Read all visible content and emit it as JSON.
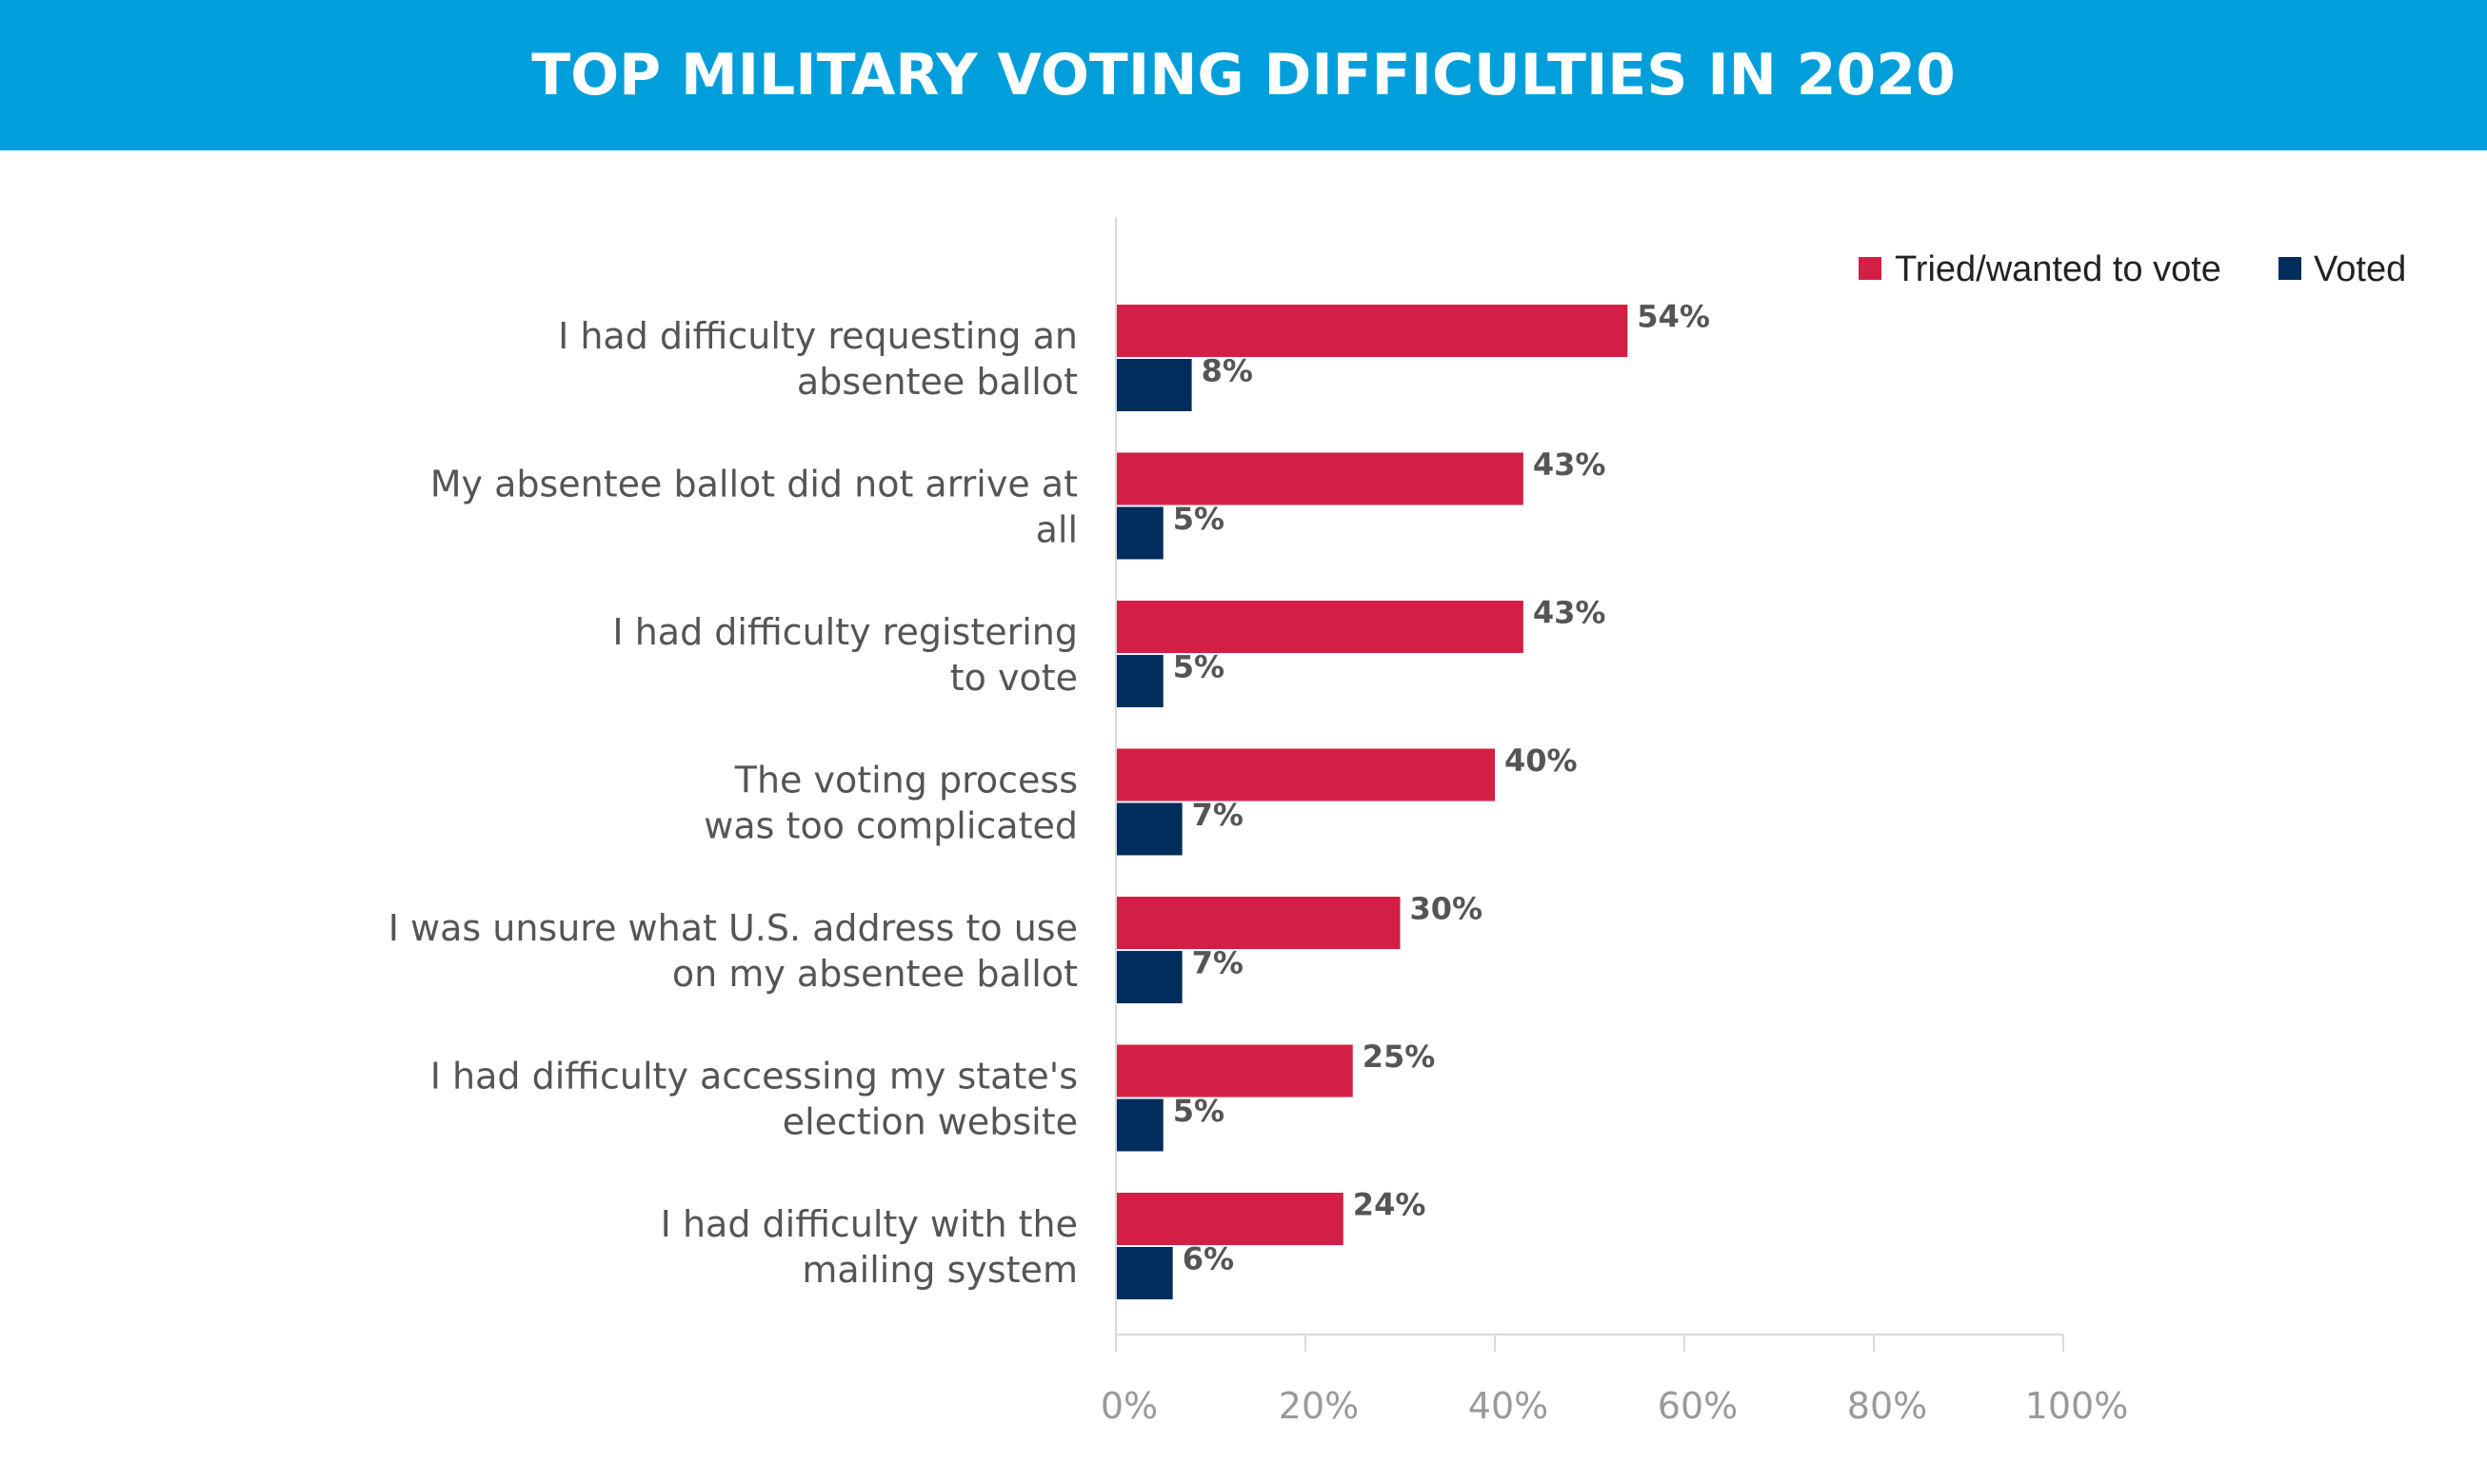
{
  "chart_data": {
    "type": "bar",
    "orientation": "horizontal",
    "title": "TOP MILITARY VOTING DIFFICULTIES IN 2020",
    "categories": [
      [
        "I had difficulty requesting an",
        "absentee ballot"
      ],
      [
        "My absentee ballot did not arrive at",
        "all"
      ],
      [
        "I had difficulty registering",
        "to vote"
      ],
      [
        "The voting process",
        "was too complicated"
      ],
      [
        "I was unsure what U.S. address to use",
        "on my absentee ballot"
      ],
      [
        "I had difficulty accessing my state's",
        "election website"
      ],
      [
        "I had difficulty with the",
        "mailing system"
      ]
    ],
    "series": [
      {
        "name": "Tried/wanted to vote",
        "color": "#d31f45",
        "values": [
          54,
          43,
          43,
          40,
          30,
          25,
          24
        ],
        "labels": [
          "54%",
          "43%",
          "43%",
          "40%",
          "30%",
          "25%",
          "24%"
        ]
      },
      {
        "name": "Voted",
        "color": "#002d5c",
        "values": [
          8,
          5,
          5,
          7,
          7,
          5,
          6
        ],
        "labels": [
          "8%",
          "5%",
          "5%",
          "7%",
          "7%",
          "5%",
          "6%"
        ]
      }
    ],
    "xlim": [
      0,
      100
    ],
    "xticks": [
      "0%",
      "20%",
      "40%",
      "60%",
      "80%",
      "100%"
    ],
    "grid": false,
    "legend_position": "top-right"
  }
}
